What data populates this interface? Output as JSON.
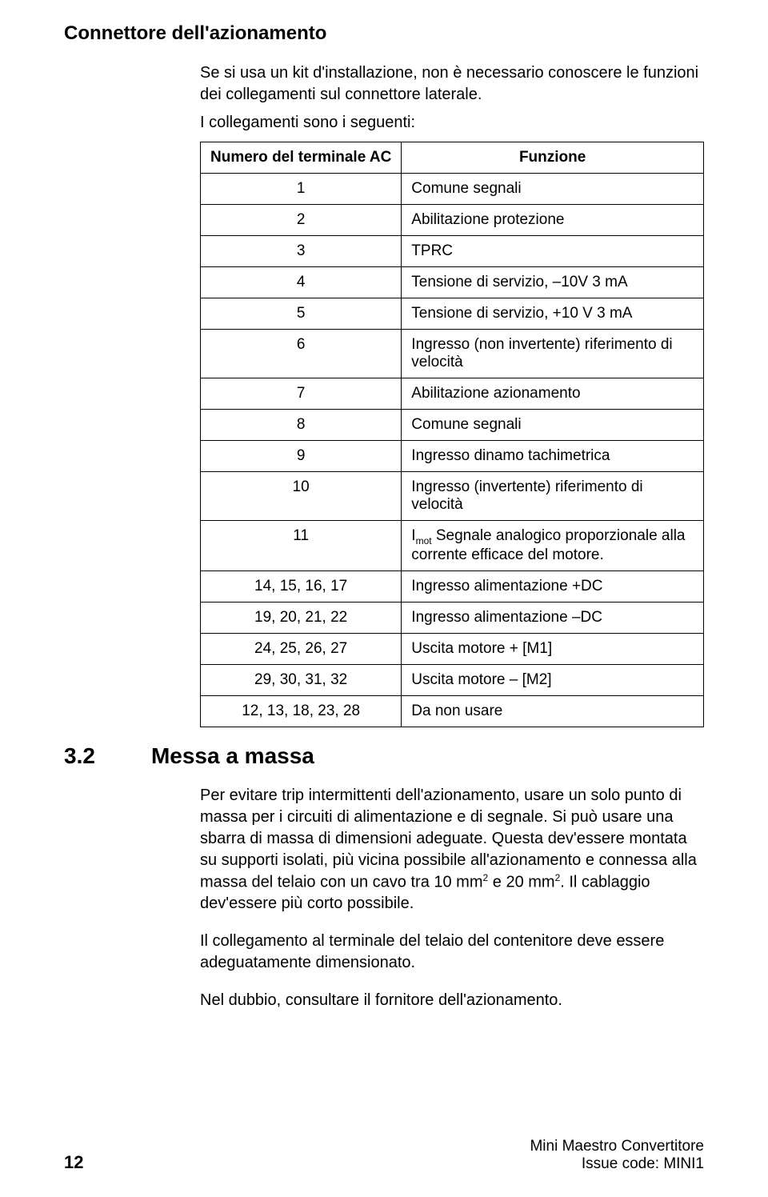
{
  "heading1": "Connettore dell'azionamento",
  "intro1": "Se si usa un kit d'installazione, non è necessario conoscere le funzioni dei collegamenti sul connettore laterale.",
  "intro2": "I collegamenti sono i seguenti:",
  "table": {
    "head_num": "Numero del terminale AC",
    "head_fun": "Funzione",
    "rows": [
      {
        "n": "1",
        "f": "Comune segnali"
      },
      {
        "n": "2",
        "f": "Abilitazione protezione"
      },
      {
        "n": "3",
        "f": "TPRC"
      },
      {
        "n": "4",
        "f": "Tensione di servizio, –10V 3 mA"
      },
      {
        "n": "5",
        "f": "Tensione di servizio, +10 V 3 mA"
      },
      {
        "n": "6",
        "f": "Ingresso (non invertente) riferimento di velocità"
      },
      {
        "n": "7",
        "f": "Abilitazione azionamento"
      },
      {
        "n": "8",
        "f": "Comune segnali"
      },
      {
        "n": "9",
        "f": "Ingresso dinamo tachimetrica"
      },
      {
        "n": "10",
        "f": "Ingresso (invertente) riferimento di velocità"
      },
      {
        "n": "11",
        "f_prefix": "I",
        "f_sub": "mot",
        "f_rest": "  Segnale analogico proporzionale alla corrente efficace del motore."
      },
      {
        "n": "14, 15, 16, 17",
        "f": "Ingresso alimentazione +DC"
      },
      {
        "n": "19, 20, 21, 22",
        "f": "Ingresso alimentazione –DC"
      },
      {
        "n": "24, 25, 26, 27",
        "f": "Uscita motore + [M1]"
      },
      {
        "n": "29, 30, 31, 32",
        "f": "Uscita motore – [M2]"
      },
      {
        "n": "12, 13, 18, 23, 28",
        "f": "Da non usare"
      }
    ]
  },
  "section_num": "3.2",
  "section_title": "Messa a massa",
  "body_p1_a": "Per evitare trip intermittenti dell'azionamento, usare un solo punto di massa per i circuiti di alimentazione e di segnale. Si può usare una sbarra di massa di dimensioni adeguate. Questa dev'essere montata su supporti isolati, più vicina possibile all'azionamento e connessa alla massa del telaio con un cavo tra 10 mm",
  "body_p1_sup1": "2",
  "body_p1_b": " e 20 mm",
  "body_p1_sup2": "2",
  "body_p1_c": ".  Il cablaggio dev'essere più corto possibile.",
  "body_p2": "Il collegamento al terminale del telaio del contenitore deve essere adeguatamente dimensionato.",
  "body_p3": "Nel dubbio, consultare il fornitore dell'azionamento.",
  "footer": {
    "page": "12",
    "line1": "Mini Maestro Convertitore",
    "line2": "Issue code:  MINI1"
  }
}
